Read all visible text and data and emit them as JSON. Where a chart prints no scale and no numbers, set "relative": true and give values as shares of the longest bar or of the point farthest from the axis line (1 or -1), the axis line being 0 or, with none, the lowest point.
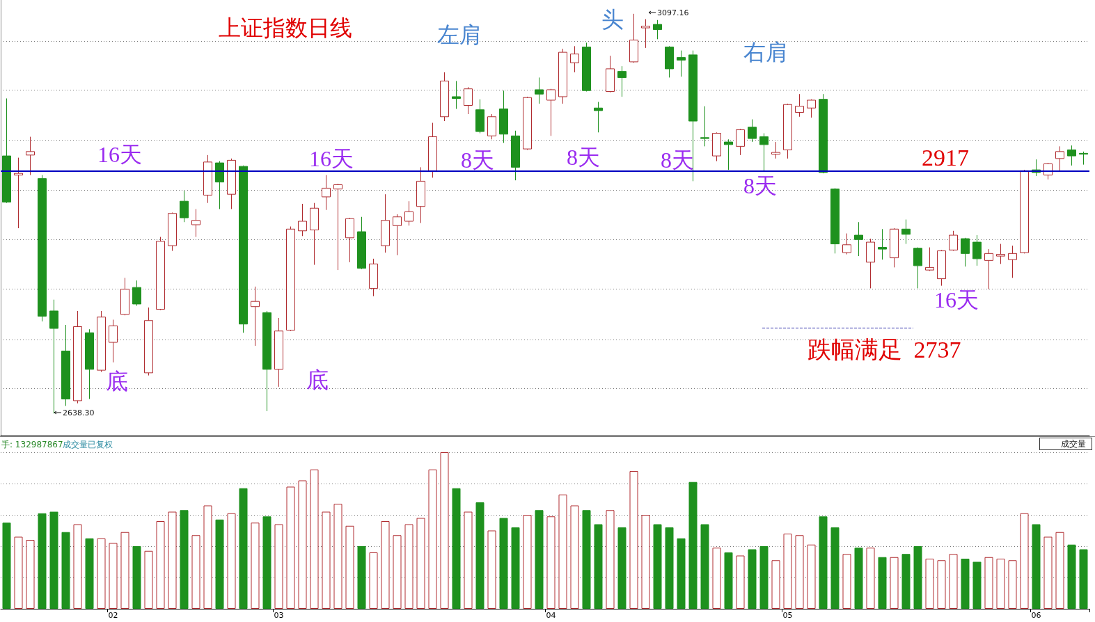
{
  "chart_data": [
    {
      "type": "candlestick",
      "title": "上证指数日线",
      "categories": [
        null,
        null,
        null,
        null,
        null,
        null,
        null,
        null,
        null,
        "02",
        null,
        null,
        null,
        null,
        null,
        null,
        null,
        null,
        null,
        null,
        null,
        null,
        null,
        "03",
        null,
        null,
        null,
        null,
        null,
        null,
        null,
        null,
        null,
        null,
        null,
        null,
        null,
        null,
        null,
        null,
        null,
        null,
        null,
        null,
        null,
        null,
        "04",
        null,
        null,
        null,
        null,
        null,
        null,
        null,
        null,
        null,
        null,
        null,
        null,
        null,
        null,
        null,
        null,
        null,
        null,
        null,
        "05",
        null,
        null,
        null,
        null,
        null,
        null,
        null,
        null,
        null,
        null,
        null,
        null,
        null,
        null,
        null,
        null,
        null,
        null,
        null,
        null,
        "06",
        null,
        null,
        null,
        null
      ],
      "ohlc": [
        [
          2934,
          3000,
          2880,
          2881
        ],
        [
          2912,
          2932,
          2851,
          2914
        ],
        [
          2935,
          2956,
          2912,
          2939
        ],
        [
          2908,
          2912,
          2744,
          2750
        ],
        [
          2756,
          2769,
          2638.3,
          2736
        ],
        [
          2710,
          2740,
          2647,
          2655
        ],
        [
          2653,
          2756,
          2650,
          2738
        ],
        [
          2731,
          2735,
          2655,
          2689
        ],
        [
          2688,
          2756,
          2686,
          2749
        ],
        [
          2720,
          2746,
          2697,
          2739
        ],
        [
          2752,
          2794,
          2751,
          2781
        ],
        [
          2783,
          2791,
          2762,
          2764
        ],
        [
          2685,
          2760,
          2682,
          2745
        ],
        [
          2758,
          2841,
          2757,
          2836
        ],
        [
          2831,
          2869,
          2825,
          2868
        ],
        [
          2882,
          2894,
          2858,
          2863
        ],
        [
          2855,
          2873,
          2841,
          2860
        ],
        [
          2889,
          2935,
          2880,
          2927
        ],
        [
          2926,
          2928,
          2873,
          2904
        ],
        [
          2890,
          2931,
          2873,
          2929
        ],
        [
          2922,
          2923,
          2731,
          2741
        ],
        [
          2761,
          2784,
          2716,
          2767
        ],
        [
          2754,
          2756,
          2641,
          2689
        ],
        [
          2689,
          2748,
          2669,
          2733
        ],
        [
          2734,
          2853,
          2733,
          2850
        ],
        [
          2848,
          2879,
          2842,
          2859
        ],
        [
          2849,
          2880,
          2809,
          2874
        ],
        [
          2887,
          2912,
          2872,
          2897
        ],
        [
          2896,
          2902,
          2803,
          2901
        ],
        [
          2840,
          2863,
          2812,
          2862
        ],
        [
          2847,
          2864,
          2804,
          2805
        ],
        [
          2782,
          2816,
          2773,
          2810
        ],
        [
          2831,
          2890,
          2823,
          2860
        ],
        [
          2854,
          2867,
          2820,
          2864
        ],
        [
          2859,
          2882,
          2854,
          2870
        ],
        [
          2876,
          2921,
          2857,
          2905
        ],
        [
          2917,
          2972,
          2909,
          2956
        ],
        [
          2979,
          3030,
          2974,
          3020
        ],
        [
          3002,
          3020,
          2988,
          3000
        ],
        [
          2992,
          3013,
          2982,
          3011
        ],
        [
          2987,
          2999,
          2960,
          2962
        ],
        [
          2957,
          2982,
          2953,
          2979
        ],
        [
          2988,
          3009,
          2949,
          2959
        ],
        [
          2957,
          2963,
          2906,
          2921
        ],
        [
          2942,
          3002,
          2941,
          3001
        ],
        [
          3010,
          3024,
          2994,
          3005
        ],
        [
          2998,
          3011,
          2957,
          3010
        ],
        [
          3002,
          3057,
          2994,
          3053
        ],
        [
          3041,
          3060,
          3030,
          3051
        ],
        [
          3059,
          3064,
          3008,
          3009
        ],
        [
          2989,
          2996,
          2961,
          2986
        ],
        [
          3008,
          3049,
          3007,
          3034
        ],
        [
          3031,
          3037,
          3002,
          3024
        ],
        [
          3042,
          3097.16,
          3041,
          3067
        ],
        [
          3081,
          3091,
          3058,
          3083
        ],
        [
          3085,
          3090,
          3068,
          3079
        ],
        [
          3059,
          3060,
          3024,
          3034
        ],
        [
          3047,
          3055,
          3025,
          3044
        ],
        [
          3050,
          3055,
          2905,
          2974
        ],
        [
          2955,
          2991,
          2945,
          2954
        ],
        [
          2934,
          2961,
          2928,
          2960
        ],
        [
          2950,
          2953,
          2918,
          2947
        ],
        [
          2945,
          2965,
          2935,
          2964
        ],
        [
          2967,
          2976,
          2950,
          2954
        ],
        [
          2956,
          2960,
          2917,
          2947
        ],
        [
          2936,
          2950,
          2931,
          2938
        ],
        [
          2941,
          2994,
          2931,
          2993
        ],
        [
          2984,
          3005,
          2979,
          2991
        ],
        [
          2989,
          2999,
          2978,
          2998
        ],
        [
          2999,
          3005,
          2914,
          2915
        ],
        [
          2896,
          2897,
          2822,
          2833
        ],
        [
          2823,
          2845,
          2821,
          2832
        ],
        [
          2843,
          2858,
          2819,
          2838
        ],
        [
          2812,
          2839,
          2782,
          2835
        ],
        [
          2829,
          2850,
          2815,
          2827
        ],
        [
          2817,
          2851,
          2806,
          2850
        ],
        [
          2850,
          2861,
          2833,
          2844
        ],
        [
          2828,
          2829,
          2782,
          2808
        ],
        [
          2803,
          2829,
          2802,
          2806
        ],
        [
          2793,
          2826,
          2785,
          2825
        ],
        [
          2826,
          2848,
          2825,
          2843
        ],
        [
          2839,
          2840,
          2807,
          2822
        ],
        [
          2835,
          2843,
          2808,
          2816
        ],
        [
          2814,
          2827,
          2781,
          2822
        ],
        [
          2819,
          2833,
          2810,
          2821
        ],
        [
          2815,
          2831,
          2794,
          2822
        ],
        [
          2823,
          2918,
          2822,
          2917
        ],
        [
          2918,
          2930,
          2911,
          2915
        ],
        [
          2912,
          2926,
          2907,
          2925
        ],
        [
          2931,
          2945,
          2917,
          2939
        ],
        [
          2941,
          2946,
          2923,
          2934
        ],
        [
          2937,
          2939,
          2924,
          2936
        ]
      ],
      "colors": [
        "#1e911e",
        "#b02c30",
        "#b02c30",
        "#1e911e",
        "#1e911e",
        "#1e911e",
        "#b02c30",
        "#1e911e",
        "#b02c30",
        "#b02c30",
        "#b02c30",
        "#1e911e",
        "#b02c30",
        "#b02c30",
        "#b02c30",
        "#1e911e",
        "#b02c30",
        "#b02c30",
        "#1e911e",
        "#b02c30",
        "#1e911e",
        "#b02c30",
        "#1e911e",
        "#b02c30",
        "#b02c30",
        "#b02c30",
        "#b02c30",
        "#b02c30",
        "#b02c30",
        "#b02c30",
        "#1e911e",
        "#b02c30",
        "#b02c30",
        "#b02c30",
        "#b02c30",
        "#b02c30",
        "#b02c30",
        "#b02c30",
        "#1e911e",
        "#b02c30",
        "#1e911e",
        "#b02c30",
        "#1e911e",
        "#1e911e",
        "#b02c30",
        "#1e911e",
        "#b02c30",
        "#b02c30",
        "#b02c30",
        "#1e911e",
        "#1e911e",
        "#b02c30",
        "#1e911e",
        "#b02c30",
        "#b02c30",
        "#1e911e",
        "#1e911e",
        "#1e911e",
        "#1e911e",
        "#1e911e",
        "#b02c30",
        "#1e911e",
        "#b02c30",
        "#1e911e",
        "#1e911e",
        "#b02c30",
        "#b02c30",
        "#b02c30",
        "#b02c30",
        "#1e911e",
        "#1e911e",
        "#b02c30",
        "#1e911e",
        "#b02c30",
        "#1e911e",
        "#b02c30",
        "#1e911e",
        "#1e911e",
        "#b02c30",
        "#b02c30",
        "#b02c30",
        "#1e911e",
        "#1e911e",
        "#b02c30",
        "#b02c30",
        "#b02c30",
        "#b02c30",
        "#1e911e",
        "#b02c30",
        "#b02c30",
        "#1e911e",
        "#1e911e"
      ],
      "ylim": [
        2613,
        3113
      ],
      "yticks": [
        {
          "value": 3066,
          "label": null
        },
        {
          "value": 3010,
          "label": null
        },
        {
          "value": 2952,
          "label": null
        },
        {
          "value": 2895,
          "label": null
        },
        {
          "value": 2838,
          "label": null
        },
        {
          "value": 2781,
          "label": null
        },
        {
          "value": 2723,
          "label": null
        },
        {
          "value": 2667,
          "label": null
        }
      ],
      "grid": "y",
      "tick_labels": false,
      "ref_lines": [
        {
          "axis": "y",
          "value": 2917,
          "label": "2917",
          "color": "#0000c0",
          "line_style": "solid"
        },
        {
          "axis": "y",
          "value": 2737,
          "label": "跌幅满足  2737",
          "color": "#2a2aa8",
          "line_style": "dashed"
        }
      ],
      "annotations": [
        "左肩",
        "头",
        "右肩",
        "16天",
        "16天",
        "8天",
        "8天",
        "8天",
        "8天",
        "16天",
        "底",
        "底",
        "3097.16",
        "2638.30"
      ]
    },
    {
      "type": "bar",
      "relative": true,
      "categories": [
        null,
        null,
        null,
        null,
        null,
        null,
        null,
        null,
        null,
        "02",
        null,
        null,
        null,
        null,
        null,
        null,
        null,
        null,
        null,
        null,
        null,
        null,
        null,
        "03",
        null,
        null,
        null,
        null,
        null,
        null,
        null,
        null,
        null,
        null,
        null,
        null,
        null,
        null,
        null,
        null,
        null,
        null,
        null,
        null,
        null,
        null,
        "04",
        null,
        null,
        null,
        null,
        null,
        null,
        null,
        null,
        null,
        null,
        null,
        null,
        null,
        null,
        null,
        null,
        null,
        null,
        null,
        "05",
        null,
        null,
        null,
        null,
        null,
        null,
        null,
        null,
        null,
        null,
        null,
        null,
        null,
        null,
        null,
        null,
        null,
        null,
        null,
        null,
        "06",
        null,
        null,
        null,
        null
      ],
      "values": [
        0.55,
        0.46,
        0.44,
        0.61,
        0.62,
        0.49,
        0.54,
        0.45,
        0.45,
        0.42,
        0.49,
        0.4,
        0.37,
        0.56,
        0.62,
        0.63,
        0.47,
        0.66,
        0.57,
        0.61,
        0.77,
        0.55,
        0.59,
        0.54,
        0.78,
        0.82,
        0.89,
        0.62,
        0.67,
        0.53,
        0.4,
        0.36,
        0.56,
        0.47,
        0.54,
        0.58,
        0.89,
        1,
        0.77,
        0.62,
        0.68,
        0.5,
        0.58,
        0.52,
        0.6,
        0.63,
        0.59,
        0.73,
        0.66,
        0.63,
        0.54,
        0.63,
        0.52,
        0.88,
        0.6,
        0.54,
        0.52,
        0.45,
        0.81,
        0.54,
        0.39,
        0.36,
        0.34,
        0.38,
        0.4,
        0.31,
        0.48,
        0.47,
        0.41,
        0.59,
        0.52,
        0.35,
        0.39,
        0.39,
        0.33,
        0.33,
        0.35,
        0.4,
        0.32,
        0.31,
        0.35,
        0.32,
        0.3,
        0.33,
        0.32,
        0.31,
        0.61,
        0.54,
        0.46,
        0.49,
        0.41,
        0.38
      ],
      "colors": [
        "#1e911e",
        "#b02c30",
        "#b02c30",
        "#1e911e",
        "#1e911e",
        "#1e911e",
        "#b02c30",
        "#1e911e",
        "#b02c30",
        "#b02c30",
        "#b02c30",
        "#1e911e",
        "#b02c30",
        "#b02c30",
        "#b02c30",
        "#1e911e",
        "#b02c30",
        "#b02c30",
        "#1e911e",
        "#b02c30",
        "#1e911e",
        "#b02c30",
        "#1e911e",
        "#b02c30",
        "#b02c30",
        "#b02c30",
        "#b02c30",
        "#b02c30",
        "#b02c30",
        "#b02c30",
        "#1e911e",
        "#b02c30",
        "#b02c30",
        "#b02c30",
        "#b02c30",
        "#b02c30",
        "#b02c30",
        "#b02c30",
        "#1e911e",
        "#b02c30",
        "#1e911e",
        "#b02c30",
        "#1e911e",
        "#1e911e",
        "#b02c30",
        "#1e911e",
        "#b02c30",
        "#b02c30",
        "#b02c30",
        "#1e911e",
        "#1e911e",
        "#b02c30",
        "#1e911e",
        "#b02c30",
        "#b02c30",
        "#1e911e",
        "#1e911e",
        "#1e911e",
        "#1e911e",
        "#1e911e",
        "#b02c30",
        "#1e911e",
        "#b02c30",
        "#1e911e",
        "#1e911e",
        "#b02c30",
        "#b02c30",
        "#b02c30",
        "#b02c30",
        "#1e911e",
        "#1e911e",
        "#b02c30",
        "#1e911e",
        "#b02c30",
        "#1e911e",
        "#b02c30",
        "#1e911e",
        "#1e911e",
        "#b02c30",
        "#b02c30",
        "#b02c30",
        "#1e911e",
        "#1e911e",
        "#b02c30",
        "#b02c30",
        "#b02c30",
        "#b02c30",
        "#1e911e",
        "#b02c30",
        "#b02c30",
        "#1e911e",
        "#1e911e"
      ],
      "grid": "y",
      "tick_labels": "x",
      "annotations": [
        "手: 132987867",
        "成交量已复权",
        "成交量"
      ]
    }
  ]
}
